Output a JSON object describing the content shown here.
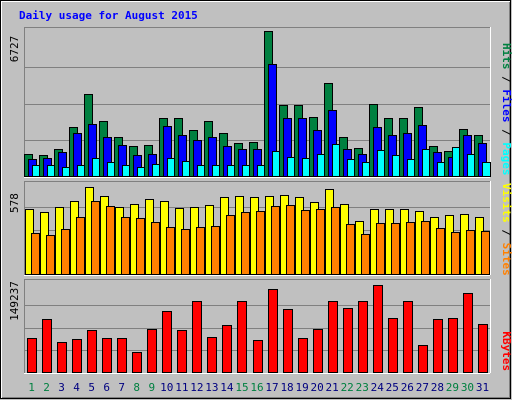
{
  "chart_data": {
    "type": "bar",
    "title": "Daily usage for August 2015",
    "categories": [
      "1",
      "2",
      "3",
      "4",
      "5",
      "6",
      "7",
      "8",
      "9",
      "10",
      "11",
      "12",
      "13",
      "14",
      "15",
      "16",
      "17",
      "18",
      "19",
      "20",
      "21",
      "22",
      "23",
      "24",
      "25",
      "26",
      "27",
      "28",
      "29",
      "30",
      "31"
    ],
    "weekend_days": [
      "1",
      "2",
      "8",
      "9",
      "15",
      "16",
      "22",
      "23",
      "29",
      "30"
    ],
    "colors": {
      "hits": "#008040",
      "files": "#0000ff",
      "pages": "#00ffff",
      "visits": "#ffff00",
      "sites": "#ff8000",
      "kbytes": "#ff0000",
      "title": "#0000ff",
      "weekend_label": "#008040",
      "weekday_label": "#000080"
    },
    "panels": [
      {
        "id": "hits_files_pages",
        "max_label": "6727",
        "ymax": 6727,
        "legend": [
          {
            "text": "Pages",
            "color": "#00ffff"
          },
          {
            "text": "Files",
            "color": "#0000ff"
          },
          {
            "text": "Hits",
            "color": "#008040"
          }
        ],
        "series": [
          {
            "name": "Hits",
            "color": "#008040",
            "values": [
              1080,
              1012,
              1282,
              2294,
              3845,
              2564,
              1821,
              1418,
              1478,
              2699,
              2732,
              2161,
              2564,
              2024,
              1552,
              1619,
              6727,
              3305,
              3305,
              2767,
              4320,
              1821,
              1315,
              3373,
              2699,
              2699,
              3237,
              1450,
              1214,
              2227,
              1956
            ]
          },
          {
            "name": "Files",
            "color": "#0000ff",
            "values": [
              809,
              877,
              1143,
              2024,
              2427,
              1821,
              1486,
              1016,
              1080,
              2364,
              1956,
              1686,
              1821,
              1421,
              1282,
              1282,
              5226,
              2699,
              2699,
              2161,
              3110,
              1282,
              1080,
              2294,
              1956,
              2024,
              2403,
              1136,
              944,
              1956,
              1552
            ]
          },
          {
            "name": "Pages",
            "color": "#00ffff",
            "values": [
              539,
              539,
              477,
              574,
              857,
              674,
              539,
              477,
              609,
              857,
              732,
              574,
              539,
              539,
              539,
              539,
              1214,
              944,
              879,
              1080,
              1519,
              809,
              674,
              1235,
              1012,
              809,
              1280,
              674,
              1365,
              1080,
              674
            ]
          }
        ]
      },
      {
        "id": "visits_sites",
        "max_label": "578",
        "ymax": 578,
        "legend": [
          {
            "text": "Sites",
            "color": "#ff8000"
          },
          {
            "text": "Visits",
            "color": "#ffff00"
          }
        ],
        "series": [
          {
            "name": "Visits",
            "color": "#ffff00",
            "values": [
              433,
              413,
              444,
              486,
              578,
              517,
              447,
              464,
              496,
              483,
              439,
              446,
              462,
              514,
              516,
              514,
              517,
              522,
              508,
              480,
              561,
              464,
              356,
              433,
              433,
              433,
              418,
              381,
              391,
              401,
              379
            ]
          },
          {
            "name": "Sites",
            "color": "#ff8000",
            "values": [
              275,
              261,
              302,
              381,
              488,
              452,
              380,
              374,
              348,
              317,
              302,
              313,
              322,
              396,
              415,
              419,
              450,
              460,
              429,
              434,
              446,
              334,
              271,
              339,
              344,
              350,
              356,
              307,
              282,
              292,
              291
            ]
          }
        ]
      },
      {
        "id": "kbytes",
        "max_label": "149237",
        "ymax": 149237,
        "legend": [
          {
            "text": "KBytes",
            "color": "#ff0000"
          }
        ],
        "series": [
          {
            "name": "KBytes",
            "color": "#ff0000",
            "values": [
              58917,
              91450,
              52745,
              57050,
              72946,
              59589,
              59589,
              35049,
              74280,
              105313,
              72963,
              121196,
              60145,
              80942,
              121196,
              55400,
              141890,
              107980,
              58921,
              73619,
              121196,
              110480,
              121196,
              149237,
              93870,
              121196,
              47880,
              90760,
              93870,
              135520,
              82260
            ]
          }
        ]
      }
    ]
  }
}
